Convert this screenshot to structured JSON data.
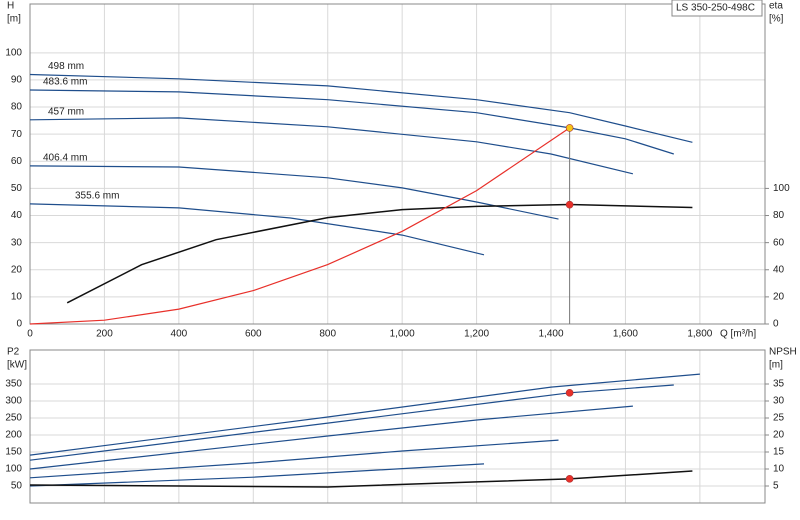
{
  "chart_data": [
    {
      "type": "line",
      "title": "LS 350-250-498C",
      "ylabel": "H",
      "yunit": "[m]",
      "y2label": "eta",
      "y2unit": "[%]",
      "xlabel": "Q [m³/h]",
      "xlim": [
        0,
        1975
      ],
      "xticks": [
        0,
        200,
        400,
        600,
        800,
        {
          "value": 1000,
          "label": "1,000"
        },
        {
          "value": 1200,
          "label": "1,200"
        },
        {
          "value": 1400,
          "label": "1,400"
        },
        {
          "value": 1600,
          "label": "1,600"
        },
        {
          "value": 1800,
          "label": "1,800"
        }
      ],
      "ylim": [
        0,
        118
      ],
      "yticks": [
        0,
        10,
        20,
        30,
        40,
        50,
        60,
        70,
        80,
        90,
        100
      ],
      "y2lim": [
        0,
        236
      ],
      "y2ticks": [
        0,
        20,
        40,
        60,
        80,
        100
      ],
      "grid": true,
      "show_xtick_labels": true,
      "series": [
        {
          "name": "498 mm",
          "color": "#1f4e8c",
          "x": [
            0,
            400,
            800,
            1200,
            1450,
            1600,
            1780
          ],
          "values": [
            92,
            90.4,
            87.8,
            82.7,
            77.9,
            73,
            67
          ]
        },
        {
          "name": "483.6 mm",
          "color": "#1f4e8c",
          "x": [
            0,
            400,
            800,
            1200,
            1450,
            1600,
            1730
          ],
          "values": [
            86.3,
            85.6,
            82.7,
            77.9,
            72.3,
            68.3,
            62.7
          ]
        },
        {
          "name": "457 mm",
          "color": "#1f4e8c",
          "x": [
            0,
            400,
            800,
            1200,
            1400,
            1620
          ],
          "values": [
            75.3,
            76,
            72.7,
            67.2,
            62.7,
            55.4
          ]
        },
        {
          "name": "406.4 mm",
          "color": "#1f4e8c",
          "x": [
            0,
            400,
            800,
            1000,
            1200,
            1420
          ],
          "values": [
            58.3,
            57.9,
            53.9,
            50.2,
            45,
            38.7
          ]
        },
        {
          "name": "355.6 mm",
          "color": "#1f4e8c",
          "x": [
            0,
            400,
            700,
            1000,
            1220
          ],
          "values": [
            44.3,
            42.8,
            39.1,
            32.8,
            25.5
          ]
        },
        {
          "color": "#111111",
          "axis": "y2",
          "x": [
            100,
            300,
            500,
            800,
            1000,
            1200,
            1450,
            1780
          ],
          "values": [
            15.6,
            43.7,
            62.2,
            78.5,
            84.4,
            86.7,
            88.1,
            85.9
          ]
        },
        {
          "color": "#e8302a",
          "x": [
            0,
            200,
            400,
            600,
            800,
            1000,
            1200,
            1450
          ],
          "values": [
            0,
            1.4,
            5.5,
            12.3,
            21.9,
            34.2,
            49.2,
            72.3
          ]
        }
      ],
      "points": [
        {
          "x": 1450,
          "y": 72.3,
          "color": "#f5c518",
          "drop": true
        },
        {
          "x": 1450,
          "y": 88,
          "axis": "y2",
          "color": "#e8302a"
        }
      ]
    },
    {
      "type": "line",
      "ylabel": "P2",
      "yunit": "[kW]",
      "y2label": "NPSH",
      "y2unit": "[m]",
      "xlim": [
        0,
        1975
      ],
      "xticks": [
        0,
        200,
        400,
        600,
        800,
        1000,
        1200,
        1400,
        1600,
        1800
      ],
      "ylim": [
        0,
        450
      ],
      "yticks": [
        50,
        100,
        150,
        200,
        250,
        300,
        350
      ],
      "y2lim": [
        0,
        45
      ],
      "y2ticks": [
        5,
        10,
        15,
        20,
        25,
        30,
        35
      ],
      "grid": true,
      "show_xtick_labels": false,
      "series": [
        {
          "color": "#1f4e8c",
          "x": [
            0,
            800,
            1400,
            1800
          ],
          "values": [
            141,
            253,
            341,
            379
          ]
        },
        {
          "color": "#1f4e8c",
          "x": [
            0,
            800,
            1450,
            1730
          ],
          "values": [
            126,
            235,
            324,
            347
          ]
        },
        {
          "color": "#1f4e8c",
          "x": [
            0,
            800,
            1200,
            1620
          ],
          "values": [
            100,
            197,
            244,
            285
          ]
        },
        {
          "color": "#1f4e8c",
          "x": [
            0,
            600,
            1000,
            1420
          ],
          "values": [
            74,
            118,
            153,
            185
          ]
        },
        {
          "color": "#1f4e8c",
          "x": [
            0,
            600,
            1220
          ],
          "values": [
            50,
            76,
            115
          ]
        },
        {
          "color": "#111111",
          "axis": "y2",
          "x": [
            0,
            800,
            1200,
            1450,
            1780
          ],
          "values": [
            5.3,
            4.7,
            6.2,
            7.1,
            9.4
          ]
        }
      ],
      "points": [
        {
          "x": 1450,
          "y": 324,
          "color": "#e8302a"
        },
        {
          "x": 1450,
          "y": 7.1,
          "axis": "y2",
          "color": "#e8302a"
        }
      ]
    }
  ]
}
